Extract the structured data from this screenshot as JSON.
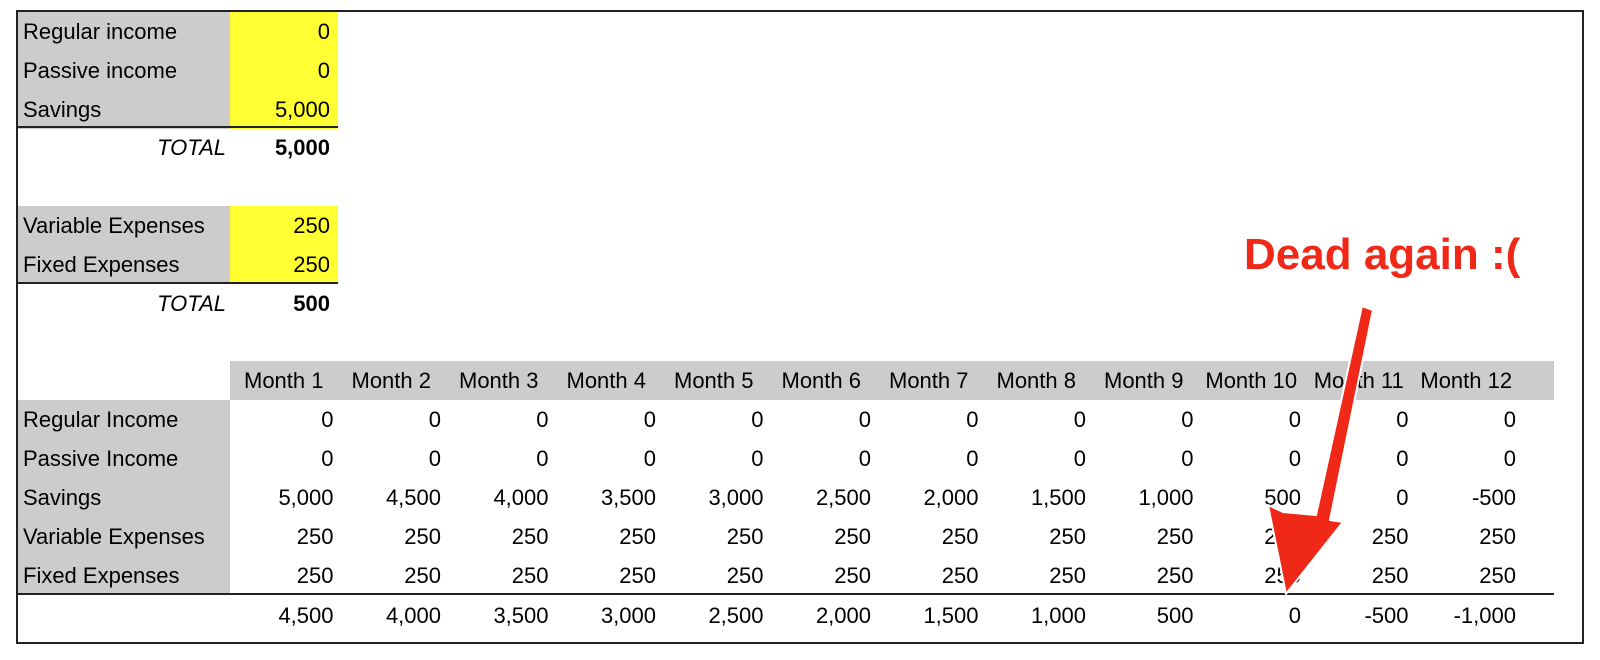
{
  "income": {
    "rows": [
      {
        "label": "Regular income",
        "value": "0"
      },
      {
        "label": "Passive income",
        "value": "0"
      },
      {
        "label": "Savings",
        "value": "5,000"
      }
    ],
    "total_label": "TOTAL",
    "total_value": "5,000"
  },
  "expenses": {
    "rows": [
      {
        "label": "Variable Expenses",
        "value": "250"
      },
      {
        "label": "Fixed Expenses",
        "value": "250"
      }
    ],
    "total_label": "TOTAL",
    "total_value": "500"
  },
  "monthly": {
    "headers": [
      "Month 1",
      "Month 2",
      "Month 3",
      "Month 4",
      "Month 5",
      "Month 6",
      "Month 7",
      "Month 8",
      "Month 9",
      "Month 10",
      "Month 11",
      "Month 12"
    ],
    "rows": [
      {
        "label": "Regular Income",
        "values": [
          "0",
          "0",
          "0",
          "0",
          "0",
          "0",
          "0",
          "0",
          "0",
          "0",
          "0",
          "0"
        ]
      },
      {
        "label": "Passive Income",
        "values": [
          "0",
          "0",
          "0",
          "0",
          "0",
          "0",
          "0",
          "0",
          "0",
          "0",
          "0",
          "0"
        ]
      },
      {
        "label": "Savings",
        "values": [
          "5,000",
          "4,500",
          "4,000",
          "3,500",
          "3,000",
          "2,500",
          "2,000",
          "1,500",
          "1,000",
          "500",
          "0",
          "-500"
        ]
      },
      {
        "label": "Variable Expenses",
        "values": [
          "250",
          "250",
          "250",
          "250",
          "250",
          "250",
          "250",
          "250",
          "250",
          "250",
          "250",
          "250"
        ]
      },
      {
        "label": "Fixed Expenses",
        "values": [
          "250",
          "250",
          "250",
          "250",
          "250",
          "250",
          "250",
          "250",
          "250",
          "250",
          "250",
          "250"
        ]
      }
    ],
    "totals": [
      "4,500",
      "4,000",
      "3,500",
      "3,000",
      "2,500",
      "2,000",
      "1,500",
      "1,000",
      "500",
      "0",
      "-500",
      "-1,000"
    ]
  },
  "annotation": {
    "text": "Dead again :(",
    "color": "#f02818"
  },
  "colors": {
    "label_bg": "#cccccc",
    "input_bg": "#ffff33"
  }
}
